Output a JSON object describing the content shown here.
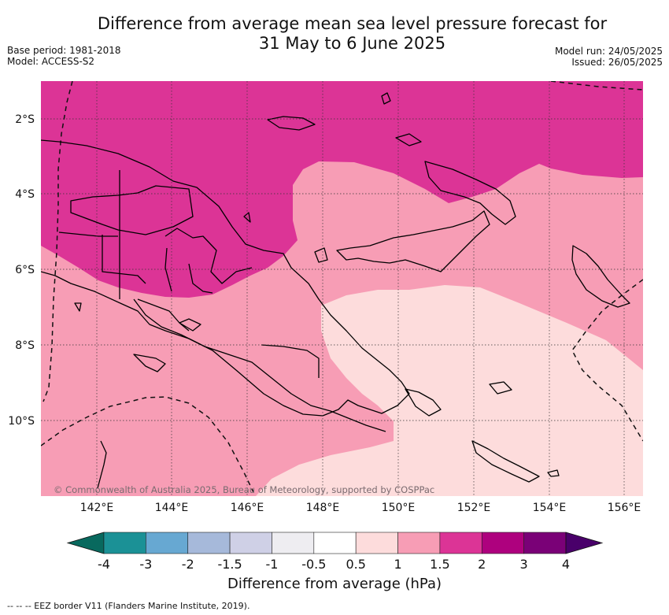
{
  "header": {
    "title_line1": "Difference from average mean sea level pressure forecast for",
    "title_line2": "31 May to 6 June 2025",
    "base_period": "Base period: 1981-2018",
    "model": "Model: ACCESS-S2",
    "model_run": "Model run: 24/05/2025",
    "issued": "Issued: 26/05/2025"
  },
  "map": {
    "lat_labels": [
      "2°S",
      "4°S",
      "6°S",
      "8°S",
      "10°S"
    ],
    "lon_labels": [
      "142°E",
      "144°E",
      "146°E",
      "148°E",
      "150°E",
      "152°E",
      "154°E",
      "156°E"
    ],
    "copyright": "© Commonwealth of Australia 2025, Bureau of Meteorology, supported by COSPPac",
    "zone_colors": {
      "anomaly_1_5_to_2": "#dc3496",
      "anomaly_1_to_1_5": "#f79db5",
      "anomaly_0_5_to_1": "#fddcdc"
    }
  },
  "colorbar": {
    "title": "Difference from average (hPa)",
    "tick_labels": [
      "-4",
      "-3",
      "-2",
      "-1.5",
      "-1",
      "-0.5",
      "0.5",
      "1",
      "1.5",
      "2",
      "3",
      "4"
    ],
    "colors": [
      "#08695e",
      "#1b9196",
      "#67a8d2",
      "#a6b9da",
      "#cfd0e6",
      "#eeedf1",
      "#ffffff",
      "#fddcdc",
      "#f79db5",
      "#dc3496",
      "#ae017e",
      "#7a0177",
      "#49006a"
    ]
  },
  "footnote": "--  --  -- EEZ border V11 (Flanders Marine Institute, 2019)."
}
